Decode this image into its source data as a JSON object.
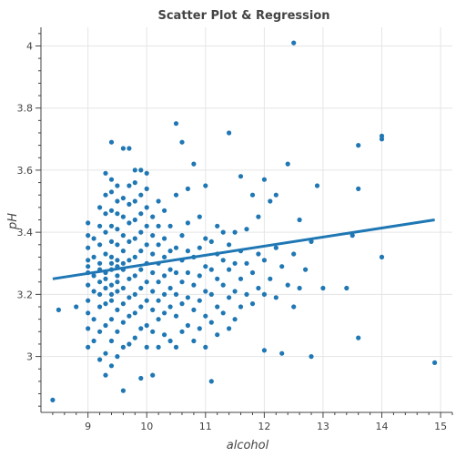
{
  "chart_data": {
    "type": "scatter",
    "title": "Scatter Plot & Regression",
    "xlabel": "alcohol",
    "ylabel": "pH",
    "xlim": [
      8.2,
      15.2
    ],
    "ylim": [
      2.82,
      4.06
    ],
    "xticks": [
      9,
      10,
      11,
      12,
      13,
      14,
      15
    ],
    "yticks": [
      3,
      3.2,
      3.4,
      3.6,
      3.8,
      4
    ],
    "grid": true,
    "colors": {
      "points": "#1f77b4",
      "line": "#1f77b4",
      "grid": "#e5e5e5",
      "axis": "#444444"
    },
    "regression": {
      "x": [
        8.4,
        14.9
      ],
      "y": [
        3.25,
        3.44
      ]
    },
    "series": [
      {
        "kind": "points",
        "x": [
          8.4,
          8.5,
          8.8,
          9.0,
          9.0,
          9.0,
          9.0,
          9.0,
          9.0,
          9.0,
          9.0,
          9.0,
          9.0,
          9.0,
          9.1,
          9.1,
          9.1,
          9.1,
          9.1,
          9.1,
          9.2,
          9.2,
          9.2,
          9.2,
          9.2,
          9.2,
          9.2,
          9.2,
          9.2,
          9.2,
          9.3,
          9.3,
          9.3,
          9.3,
          9.3,
          9.3,
          9.3,
          9.3,
          9.3,
          9.3,
          9.3,
          9.3,
          9.4,
          9.4,
          9.4,
          9.4,
          9.4,
          9.4,
          9.4,
          9.4,
          9.4,
          9.4,
          9.4,
          9.4,
          9.4,
          9.4,
          9.4,
          9.5,
          9.5,
          9.5,
          9.5,
          9.5,
          9.5,
          9.5,
          9.5,
          9.5,
          9.5,
          9.5,
          9.5,
          9.5,
          9.6,
          9.6,
          9.6,
          9.6,
          9.6,
          9.6,
          9.6,
          9.6,
          9.6,
          9.6,
          9.6,
          9.6,
          9.7,
          9.7,
          9.7,
          9.7,
          9.7,
          9.7,
          9.7,
          9.7,
          9.7,
          9.7,
          9.8,
          9.8,
          9.8,
          9.8,
          9.8,
          9.8,
          9.8,
          9.8,
          9.8,
          9.8,
          9.9,
          9.9,
          9.9,
          9.9,
          9.9,
          9.9,
          9.9,
          9.9,
          9.9,
          9.9,
          10.0,
          10.0,
          10.0,
          10.0,
          10.0,
          10.0,
          10.0,
          10.0,
          10.0,
          10.0,
          10.1,
          10.1,
          10.1,
          10.1,
          10.1,
          10.1,
          10.1,
          10.1,
          10.2,
          10.2,
          10.2,
          10.2,
          10.2,
          10.2,
          10.2,
          10.2,
          10.3,
          10.3,
          10.3,
          10.3,
          10.3,
          10.3,
          10.3,
          10.4,
          10.4,
          10.4,
          10.4,
          10.4,
          10.4,
          10.5,
          10.5,
          10.5,
          10.5,
          10.5,
          10.5,
          10.5,
          10.6,
          10.6,
          10.6,
          10.6,
          10.6,
          10.6,
          10.7,
          10.7,
          10.7,
          10.7,
          10.7,
          10.7,
          10.8,
          10.8,
          10.8,
          10.8,
          10.8,
          10.9,
          10.9,
          10.9,
          10.9,
          10.9,
          11.0,
          11.0,
          11.0,
          11.0,
          11.0,
          11.0,
          11.1,
          11.1,
          11.1,
          11.1,
          11.1,
          11.2,
          11.2,
          11.2,
          11.2,
          11.2,
          11.3,
          11.3,
          11.3,
          11.3,
          11.4,
          11.4,
          11.4,
          11.4,
          11.4,
          11.5,
          11.5,
          11.5,
          11.5,
          11.6,
          11.6,
          11.6,
          11.6,
          11.7,
          11.7,
          11.7,
          11.8,
          11.8,
          11.8,
          11.9,
          11.9,
          11.9,
          12.0,
          12.0,
          12.0,
          12.0,
          12.1,
          12.1,
          12.2,
          12.2,
          12.2,
          12.3,
          12.3,
          12.4,
          12.4,
          12.5,
          12.5,
          12.5,
          12.6,
          12.6,
          12.7,
          12.8,
          12.8,
          12.9,
          13.0,
          13.4,
          13.5,
          13.6,
          13.6,
          13.6,
          14.0,
          14.0,
          14.0,
          14.9
        ],
        "y": [
          2.86,
          3.15,
          3.16,
          3.03,
          3.09,
          3.14,
          3.18,
          3.23,
          3.27,
          3.31,
          3.35,
          3.39,
          3.43,
          3.29,
          3.05,
          3.12,
          3.21,
          3.26,
          3.32,
          3.38,
          2.99,
          3.08,
          3.16,
          3.24,
          3.3,
          3.36,
          3.42,
          3.48,
          3.28,
          3.2,
          2.94,
          3.01,
          3.1,
          3.17,
          3.22,
          3.27,
          3.33,
          3.4,
          3.46,
          3.52,
          3.59,
          3.25,
          2.97,
          3.05,
          3.12,
          3.18,
          3.23,
          3.28,
          3.32,
          3.37,
          3.42,
          3.47,
          3.53,
          3.57,
          3.69,
          3.2,
          3.3,
          3.0,
          3.08,
          3.15,
          3.21,
          3.26,
          3.31,
          3.36,
          3.41,
          3.46,
          3.5,
          3.55,
          3.29,
          3.24,
          2.89,
          3.03,
          3.11,
          3.17,
          3.22,
          3.28,
          3.34,
          3.39,
          3.45,
          3.51,
          3.67,
          3.3,
          3.04,
          3.13,
          3.19,
          3.25,
          3.31,
          3.37,
          3.43,
          3.49,
          3.55,
          3.67,
          3.06,
          3.14,
          3.2,
          3.26,
          3.32,
          3.38,
          3.44,
          3.5,
          3.56,
          3.6,
          2.93,
          3.09,
          3.16,
          3.22,
          3.28,
          3.34,
          3.4,
          3.46,
          3.52,
          3.6,
          3.03,
          3.1,
          3.18,
          3.24,
          3.3,
          3.36,
          3.42,
          3.48,
          3.54,
          3.59,
          2.94,
          3.08,
          3.15,
          3.21,
          3.27,
          3.33,
          3.39,
          3.45,
          3.03,
          3.12,
          3.18,
          3.24,
          3.3,
          3.36,
          3.42,
          3.5,
          3.07,
          3.14,
          3.2,
          3.26,
          3.32,
          3.38,
          3.47,
          3.05,
          3.16,
          3.22,
          3.28,
          3.34,
          3.42,
          3.03,
          3.13,
          3.2,
          3.27,
          3.35,
          3.52,
          3.75,
          3.08,
          3.17,
          3.24,
          3.31,
          3.39,
          3.69,
          3.1,
          3.19,
          3.27,
          3.34,
          3.43,
          3.54,
          3.05,
          3.15,
          3.23,
          3.32,
          3.62,
          3.09,
          3.18,
          3.26,
          3.35,
          3.45,
          3.03,
          3.13,
          3.21,
          3.29,
          3.38,
          3.55,
          2.92,
          3.11,
          3.2,
          3.28,
          3.37,
          3.07,
          3.16,
          3.25,
          3.33,
          3.42,
          3.14,
          3.23,
          3.31,
          3.4,
          3.09,
          3.19,
          3.28,
          3.36,
          3.72,
          3.12,
          3.21,
          3.3,
          3.4,
          3.16,
          3.25,
          3.34,
          3.58,
          3.2,
          3.3,
          3.41,
          3.17,
          3.27,
          3.52,
          3.22,
          3.33,
          3.45,
          3.02,
          3.2,
          3.31,
          3.57,
          3.25,
          3.5,
          3.19,
          3.35,
          3.52,
          3.01,
          3.29,
          3.23,
          3.62,
          3.16,
          3.33,
          4.01,
          3.22,
          3.44,
          3.28,
          3.0,
          3.37,
          3.55,
          3.22,
          3.22,
          3.39,
          3.54,
          3.68,
          3.06,
          3.32,
          3.7,
          3.71,
          2.98
        ]
      }
    ]
  }
}
